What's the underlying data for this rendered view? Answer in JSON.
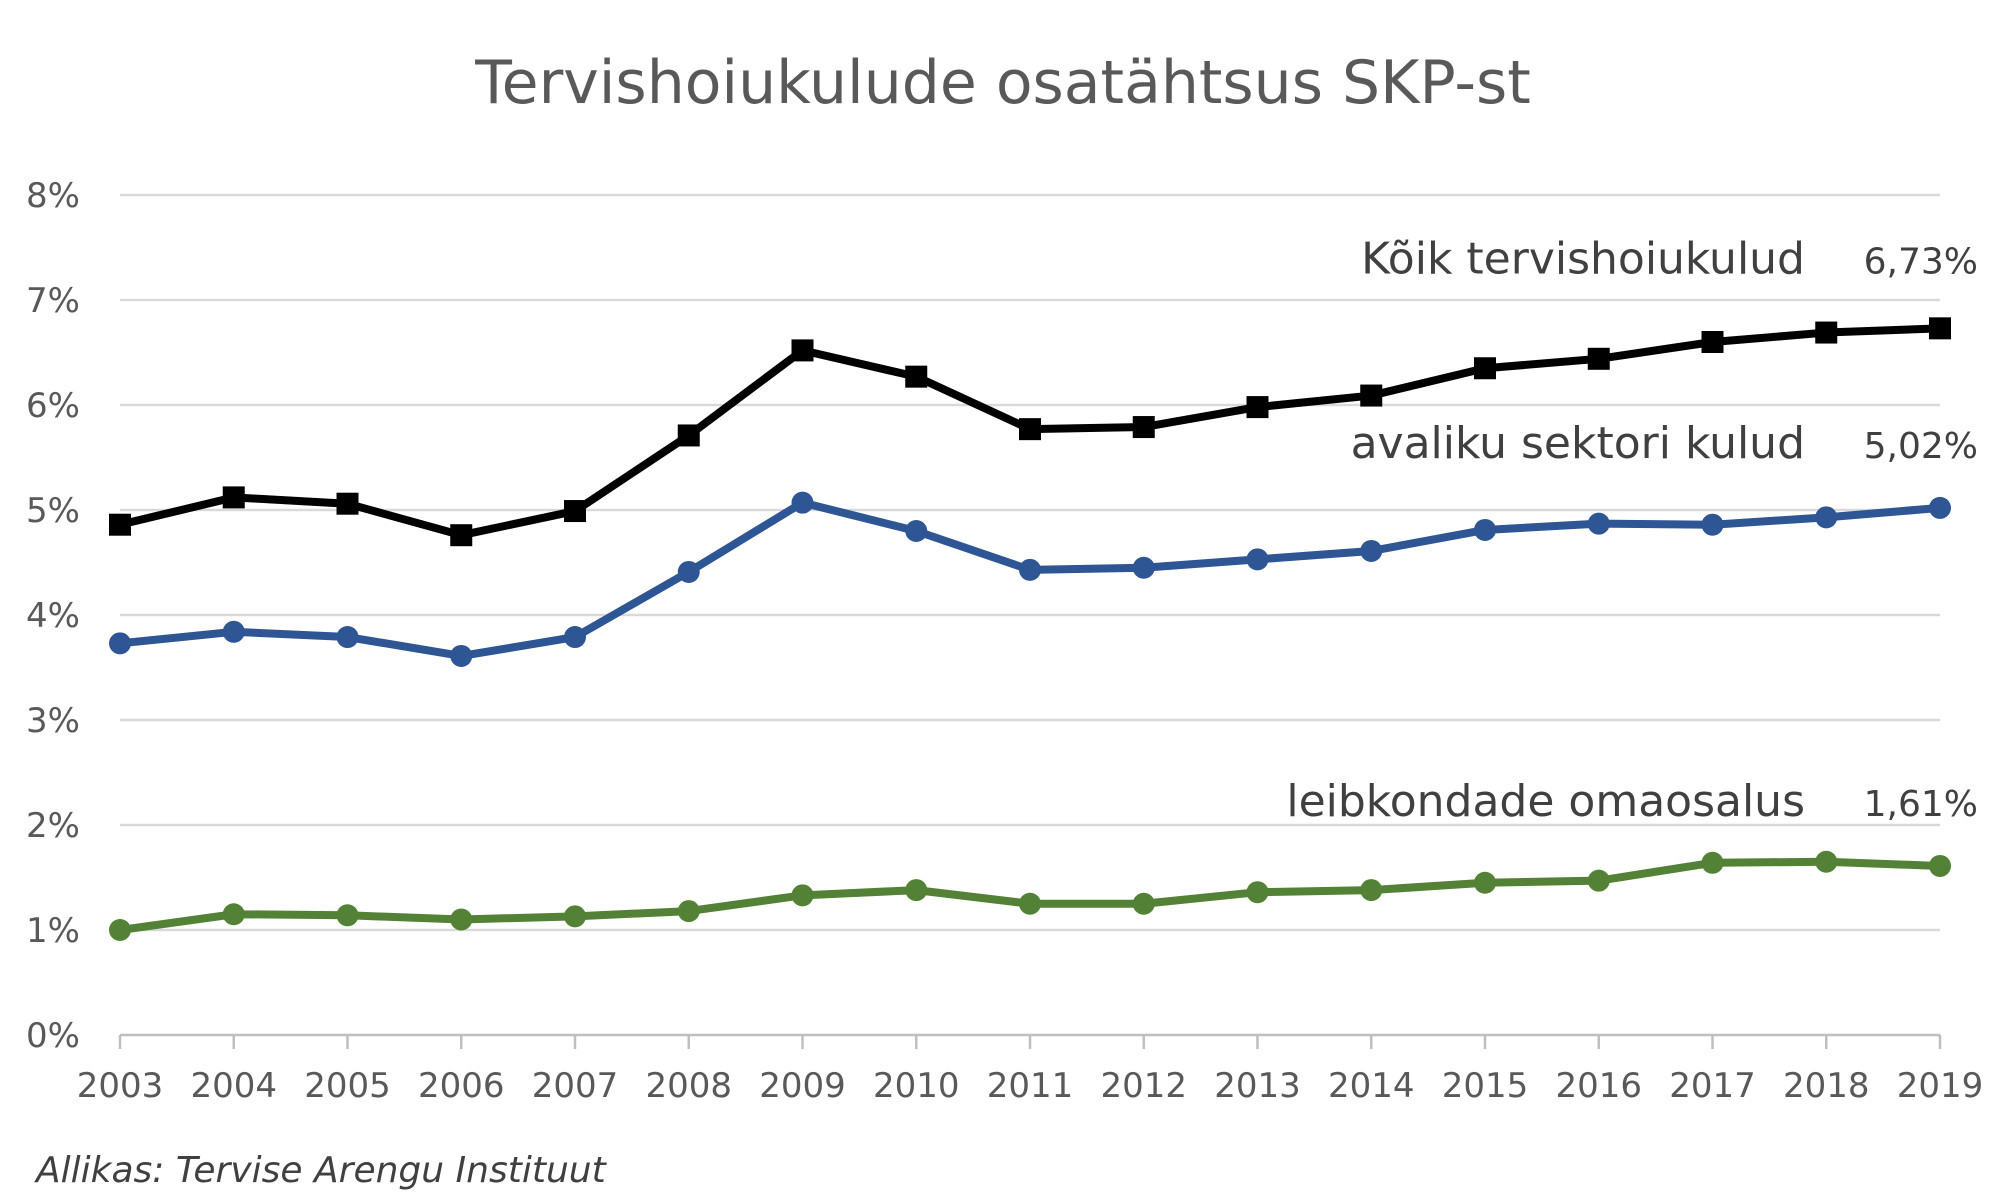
{
  "chart_data": {
    "type": "line",
    "title": "Tervishoiukulude osatähtsus SKP-st",
    "xlabel": "",
    "ylabel": "",
    "ylim": [
      0,
      8
    ],
    "y_ticks": [
      "0%",
      "1%",
      "2%",
      "3%",
      "4%",
      "5%",
      "6%",
      "7%",
      "8%"
    ],
    "grid": true,
    "categories": [
      "2003",
      "2004",
      "2005",
      "2006",
      "2007",
      "2008",
      "2009",
      "2010",
      "2011",
      "2012",
      "2013",
      "2014",
      "2015",
      "2016",
      "2017",
      "2018",
      "2019"
    ],
    "series": [
      {
        "name": "Kõik tervishoiukulud",
        "end_label": "6,73%",
        "color": "#000000",
        "marker": "square",
        "values": [
          4.86,
          5.12,
          5.06,
          4.76,
          4.99,
          5.71,
          6.52,
          6.27,
          5.77,
          5.79,
          5.98,
          6.09,
          6.35,
          6.44,
          6.6,
          6.69,
          6.73
        ]
      },
      {
        "name": "avaliku sektori kulud",
        "end_label": "5,02%",
        "color": "#2E5594",
        "marker": "circle",
        "values": [
          3.73,
          3.84,
          3.79,
          3.61,
          3.79,
          4.41,
          5.07,
          4.8,
          4.43,
          4.45,
          4.53,
          4.61,
          4.81,
          4.87,
          4.86,
          4.93,
          5.02
        ]
      },
      {
        "name": "leibkondade omaosalus",
        "end_label": "1,61%",
        "color": "#538135",
        "marker": "circle",
        "values": [
          1.0,
          1.15,
          1.14,
          1.1,
          1.13,
          1.18,
          1.33,
          1.38,
          1.25,
          1.25,
          1.36,
          1.38,
          1.45,
          1.47,
          1.64,
          1.65,
          1.61
        ]
      }
    ]
  },
  "source": "Allikas: Tervise Arengu Instituut"
}
